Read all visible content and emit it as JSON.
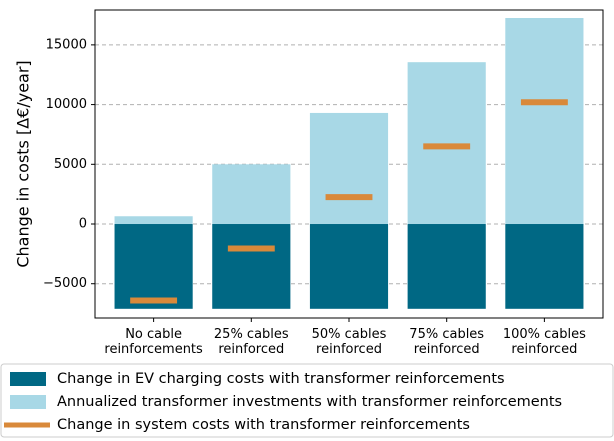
{
  "chart_data": {
    "type": "bar",
    "categories": [
      "No cable\nreinforcements",
      "25% cables\nreinforced",
      "50% cables\nreinforced",
      "75% cables\nreinforced",
      "100% cables\nreinforced"
    ],
    "y_label": "Change in costs [Δ€/year]",
    "ylim": [
      -7870,
      17920
    ],
    "yticks": [
      {
        "value": -5000,
        "label": "−5000"
      },
      0,
      5000,
      10000,
      15000
    ],
    "grid": true,
    "series": [
      {
        "name": "Change in EV charging costs with transformer reinforcements",
        "color": "#006884",
        "style": "bar",
        "values": [
          -7100,
          -7100,
          -7100,
          -7100,
          -7100
        ]
      },
      {
        "name": "Annualized transformer investments with transformer reinforcements",
        "color": "#a8d8e6",
        "style": "bar",
        "values": [
          650,
          5000,
          9300,
          13550,
          17250
        ]
      },
      {
        "name": "Change in system costs with transformer reinforcements",
        "color": "#d9893a",
        "style": "hline",
        "values": [
          -6400,
          -2050,
          2250,
          6500,
          10200
        ]
      }
    ]
  }
}
